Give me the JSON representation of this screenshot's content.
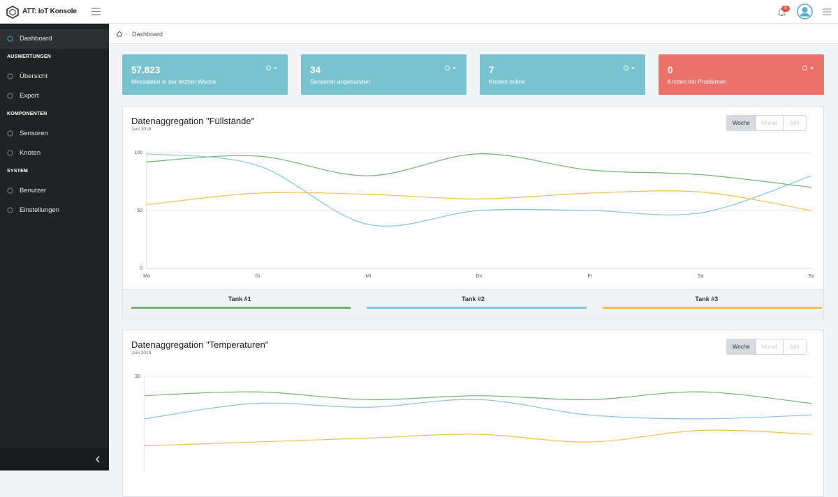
{
  "header": {
    "brand": "ATT: IoT Konsole",
    "notifications": "5"
  },
  "sidebar": [
    {
      "kind": "item",
      "label": "Dashboard",
      "active": true
    },
    {
      "kind": "section",
      "label": "AUSWERTUNGEN"
    },
    {
      "kind": "item",
      "label": "Übersicht"
    },
    {
      "kind": "item",
      "label": "Export"
    },
    {
      "kind": "section",
      "label": "KOMPONENTEN"
    },
    {
      "kind": "item",
      "label": "Sensoren"
    },
    {
      "kind": "item",
      "label": "Knoten"
    },
    {
      "kind": "section",
      "label": "SYSTEM"
    },
    {
      "kind": "item",
      "label": "Benutzer"
    },
    {
      "kind": "item",
      "label": "Einstellungen"
    }
  ],
  "breadcrumb": "Dashboard",
  "cards": [
    {
      "value": "57.823",
      "label": "Messdaten in der letzten Woche",
      "color": "#78c3cf"
    },
    {
      "value": "34",
      "label": "Sensoren angebunden",
      "color": "#78c3cf"
    },
    {
      "value": "7",
      "label": "Knoten online",
      "color": "#78c3cf"
    },
    {
      "value": "0",
      "label": "Knoten mit Problemen",
      "color": "#eb716b"
    }
  ],
  "charts": [
    {
      "type": "line",
      "title": "Datenaggregation \"Füllstände\"",
      "subtitle": "Juni 2018",
      "buttons": [
        "Woche",
        "Monat",
        "Jahr"
      ],
      "active_button": 0,
      "categories": [
        "Mo",
        "Di",
        "Mi",
        "Do",
        "Fr",
        "Sa",
        "So"
      ],
      "series": [
        {
          "name": "Tank #1",
          "color": "#6db56d",
          "values": [
            92,
            97,
            80,
            99,
            85,
            81,
            70
          ]
        },
        {
          "name": "Tank #2",
          "color": "#80c4df",
          "values": [
            99,
            89,
            38,
            50,
            50,
            48,
            80
          ]
        },
        {
          "name": "Tank #3",
          "color": "#f2c14b",
          "values": [
            55,
            65,
            64,
            60,
            65,
            66,
            50
          ]
        }
      ],
      "ylim": [
        0,
        100
      ],
      "yticks": [
        0,
        50,
        100
      ],
      "grid": true
    },
    {
      "type": "line",
      "title": "Datenaggregation \"Temperaturen\"",
      "subtitle": "Juni 2018",
      "buttons": [
        "Woche",
        "Monat",
        "Jahr"
      ],
      "active_button": 0,
      "series": [
        {
          "color": "#6db56d",
          "values": [
            25,
            26,
            24,
            25,
            24,
            26,
            23
          ]
        },
        {
          "color": "#80c4df",
          "values": [
            19,
            23,
            22,
            24,
            20,
            19,
            20
          ]
        },
        {
          "color": "#f2c14b",
          "values": [
            12,
            13,
            14,
            15,
            13,
            16,
            15
          ]
        }
      ],
      "ylim": [
        0,
        30
      ],
      "yticks": [
        30
      ],
      "grid": true
    }
  ]
}
